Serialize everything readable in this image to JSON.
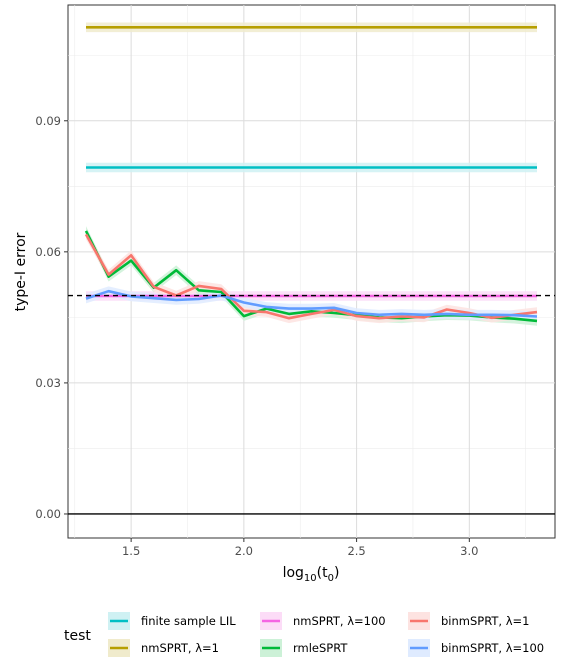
{
  "chart_data": {
    "type": "line",
    "xlabel_base": "log",
    "xlabel_sub": "10",
    "xlabel_arg": "(t",
    "xlabel_arg_sub": "0",
    "xlabel_close": ")",
    "ylabel": "type-I error",
    "xlim": [
      1.22,
      3.38
    ],
    "ylim": [
      -0.0055,
      0.1165
    ],
    "x_ticks": [
      1.5,
      2.0,
      2.5,
      3.0
    ],
    "x_tick_labels": [
      "1.5",
      "2.0",
      "2.5",
      "3.0"
    ],
    "y_ticks": [
      0.0,
      0.03,
      0.06,
      0.09
    ],
    "y_tick_labels": [
      "0.00",
      "0.03",
      "0.06",
      "0.09"
    ],
    "grid": true,
    "reference_lines": [
      {
        "y": 0.05,
        "style": "dashed",
        "color": "#000000"
      },
      {
        "y": 0.0,
        "style": "solid",
        "color": "#000000"
      }
    ],
    "legend_title": "test",
    "legend_position": "bottom",
    "x": [
      1.3,
      1.4,
      1.5,
      1.6,
      1.7,
      1.8,
      1.9,
      2.0,
      2.1,
      2.2,
      2.3,
      2.4,
      2.5,
      2.6,
      2.7,
      2.8,
      2.9,
      3.0,
      3.1,
      3.2,
      3.3
    ],
    "series": [
      {
        "name": "finite sample LIL",
        "color": "#00BFC4",
        "band": "#CFF1F3",
        "values": [
          0.0793,
          0.0793,
          0.0793,
          0.0793,
          0.0793,
          0.0793,
          0.0793,
          0.0793,
          0.0793,
          0.0793,
          0.0793,
          0.0793,
          0.0793,
          0.0793,
          0.0793,
          0.0793,
          0.0793,
          0.0793,
          0.0793,
          0.0793,
          0.0793
        ]
      },
      {
        "name": "nmSPRT, λ=1",
        "color": "#B79F00",
        "band": "#F0EBCC",
        "values": [
          0.1114,
          0.1114,
          0.1114,
          0.1114,
          0.1114,
          0.1114,
          0.1114,
          0.1114,
          0.1114,
          0.1114,
          0.1114,
          0.1114,
          0.1114,
          0.1114,
          0.1114,
          0.1114,
          0.1114,
          0.1114,
          0.1114,
          0.1114,
          0.1114
        ]
      },
      {
        "name": "nmSPRT, λ=100",
        "color": "#F564E3",
        "band": "#FCDCF7",
        "values": [
          0.0499,
          0.0499,
          0.0499,
          0.0499,
          0.0499,
          0.0499,
          0.0499,
          0.0499,
          0.0499,
          0.0499,
          0.0499,
          0.0499,
          0.0499,
          0.0499,
          0.0499,
          0.0499,
          0.0499,
          0.0499,
          0.0499,
          0.0499,
          0.0499
        ]
      },
      {
        "name": "rmleSPRT",
        "color": "#00BA38",
        "band": "#CCF1D7",
        "values": [
          0.0648,
          0.0543,
          0.058,
          0.0518,
          0.0558,
          0.0512,
          0.0508,
          0.0453,
          0.047,
          0.0458,
          0.0464,
          0.046,
          0.0455,
          0.045,
          0.0448,
          0.0452,
          0.0455,
          0.0454,
          0.045,
          0.0447,
          0.0442
        ]
      },
      {
        "name": "binmSPRT, λ=1",
        "color": "#F8766D",
        "band": "#FDE3E1",
        "values": [
          0.064,
          0.0548,
          0.0592,
          0.052,
          0.05,
          0.0522,
          0.0515,
          0.0465,
          0.0462,
          0.0448,
          0.0458,
          0.0467,
          0.0453,
          0.0448,
          0.0452,
          0.045,
          0.0468,
          0.046,
          0.0449,
          0.0456,
          0.0462
        ]
      },
      {
        "name": "binmSPRT, λ=100",
        "color": "#619CFF",
        "band": "#DFEBFF",
        "values": [
          0.0493,
          0.051,
          0.0498,
          0.0494,
          0.049,
          0.0492,
          0.05,
          0.0484,
          0.0474,
          0.047,
          0.047,
          0.0472,
          0.046,
          0.0456,
          0.0458,
          0.0456,
          0.0458,
          0.0456,
          0.0456,
          0.0455,
          0.0452
        ]
      }
    ]
  }
}
